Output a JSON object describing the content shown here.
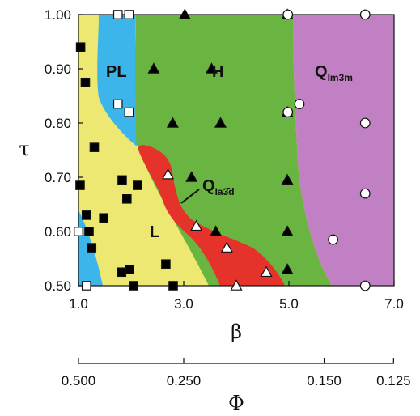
{
  "chart_data": {
    "type": "scatter",
    "xlabel": "β",
    "ylabel": "τ",
    "xlim": [
      1.0,
      7.0
    ],
    "ylim": [
      0.5,
      1.0
    ],
    "x_ticks": [
      "1.0",
      "3.0",
      "5.0",
      "7.0"
    ],
    "y_ticks": [
      "0.50",
      "0.60",
      "0.70",
      "0.80",
      "0.90",
      "1.00"
    ],
    "secondary_axis": {
      "label": "Φ",
      "ticks": [
        "0.500",
        "0.250",
        "0.150",
        "0.125"
      ],
      "tick_beta": [
        1.0,
        3.0,
        5.67,
        6.99
      ]
    },
    "regions": [
      {
        "name": "L",
        "label": "L",
        "color": "#ede872"
      },
      {
        "name": "PL",
        "label": "PL",
        "color": "#3cb6ea"
      },
      {
        "name": "H",
        "label": "H",
        "color": "#6ab541"
      },
      {
        "name": "Q_Ia3d",
        "label": "Q",
        "sub": "Ia3̄d",
        "color": "#e5322a"
      },
      {
        "name": "Q_Im3m",
        "label": "Q",
        "sub": "Im3̄m",
        "color": "#c180c3"
      }
    ],
    "colors": {
      "square_fill": "#000000",
      "triangle_fill": "#000000"
    },
    "series": [
      {
        "marker": "filled-square",
        "points": [
          [
            1.04,
            0.94
          ],
          [
            1.13,
            0.875
          ],
          [
            1.3,
            0.755
          ],
          [
            1.03,
            0.685
          ],
          [
            1.15,
            0.63
          ],
          [
            1.2,
            0.6
          ],
          [
            1.25,
            0.57
          ],
          [
            1.48,
            0.625
          ],
          [
            1.83,
            0.695
          ],
          [
            1.92,
            0.66
          ],
          [
            2.12,
            0.685
          ],
          [
            1.97,
            0.53
          ],
          [
            1.82,
            0.525
          ],
          [
            2.66,
            0.54
          ],
          [
            2.05,
            0.5
          ],
          [
            2.8,
            0.5
          ]
        ]
      },
      {
        "marker": "open-square",
        "points": [
          [
            1.75,
            1.0
          ],
          [
            1.96,
            1.0
          ],
          [
            1.75,
            0.835
          ],
          [
            1.96,
            0.82
          ],
          [
            1.0,
            0.6
          ],
          [
            1.15,
            0.5
          ]
        ]
      },
      {
        "marker": "filled-triangle",
        "points": [
          [
            3.02,
            1.0
          ],
          [
            2.43,
            0.9
          ],
          [
            3.53,
            0.9
          ],
          [
            2.79,
            0.8
          ],
          [
            3.7,
            0.8
          ],
          [
            3.15,
            0.7
          ],
          [
            4.97,
            0.695
          ],
          [
            4.97,
            0.6
          ],
          [
            4.97,
            0.53
          ],
          [
            4.97,
            0.82
          ],
          [
            4.97,
            1.0
          ],
          [
            3.61,
            0.6
          ]
        ]
      },
      {
        "marker": "open-triangle",
        "points": [
          [
            2.7,
            0.705
          ],
          [
            3.24,
            0.61
          ],
          [
            3.82,
            0.57
          ],
          [
            4.57,
            0.525
          ],
          [
            4.0,
            0.5
          ]
        ]
      },
      {
        "marker": "open-circle",
        "points": [
          [
            6.45,
            1.0
          ],
          [
            4.98,
            1.0
          ],
          [
            5.2,
            0.835
          ],
          [
            4.98,
            0.82
          ],
          [
            6.45,
            0.8
          ],
          [
            6.45,
            0.67
          ],
          [
            5.84,
            0.585
          ],
          [
            6.45,
            0.5
          ]
        ]
      }
    ]
  }
}
